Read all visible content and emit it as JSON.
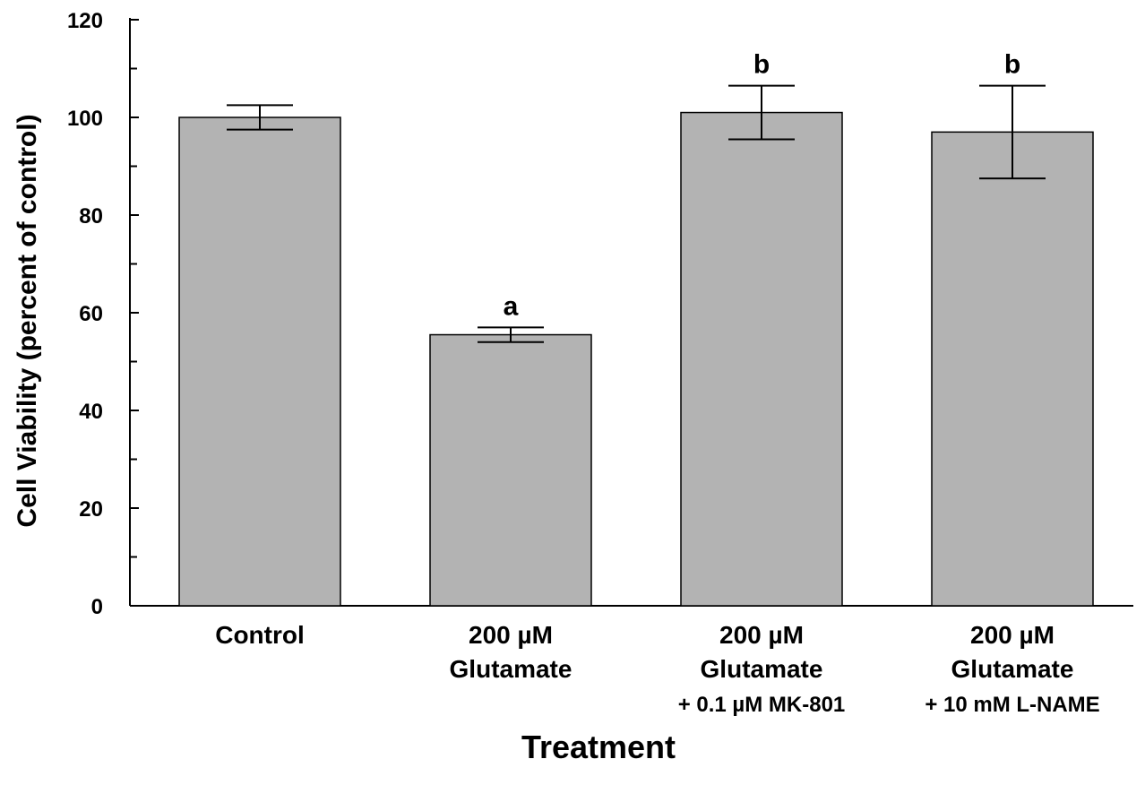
{
  "chart_data": {
    "type": "bar",
    "categories": [
      {
        "line1": "Control",
        "line2": "",
        "line3": ""
      },
      {
        "line1": "200 µM",
        "line2": "Glutamate",
        "line3": ""
      },
      {
        "line1": "200 µM",
        "line2": "Glutamate",
        "line3": "+ 0.1 µM MK-801"
      },
      {
        "line1": "200 µM",
        "line2": "Glutamate",
        "line3": "+ 10 mM L-NAME"
      }
    ],
    "values": [
      100,
      55.5,
      101,
      97
    ],
    "errors": [
      2.5,
      1.5,
      5.5,
      9.5
    ],
    "annotations": [
      "",
      "a",
      "b",
      "b"
    ],
    "xlabel": "Treatment",
    "ylabel": "Cell Viability (percent of control)",
    "ylim": [
      0,
      120
    ],
    "yticks": [
      0,
      20,
      40,
      60,
      80,
      100,
      120
    ],
    "bar_color": "#b3b3b3",
    "grid": false,
    "legend": "none"
  }
}
